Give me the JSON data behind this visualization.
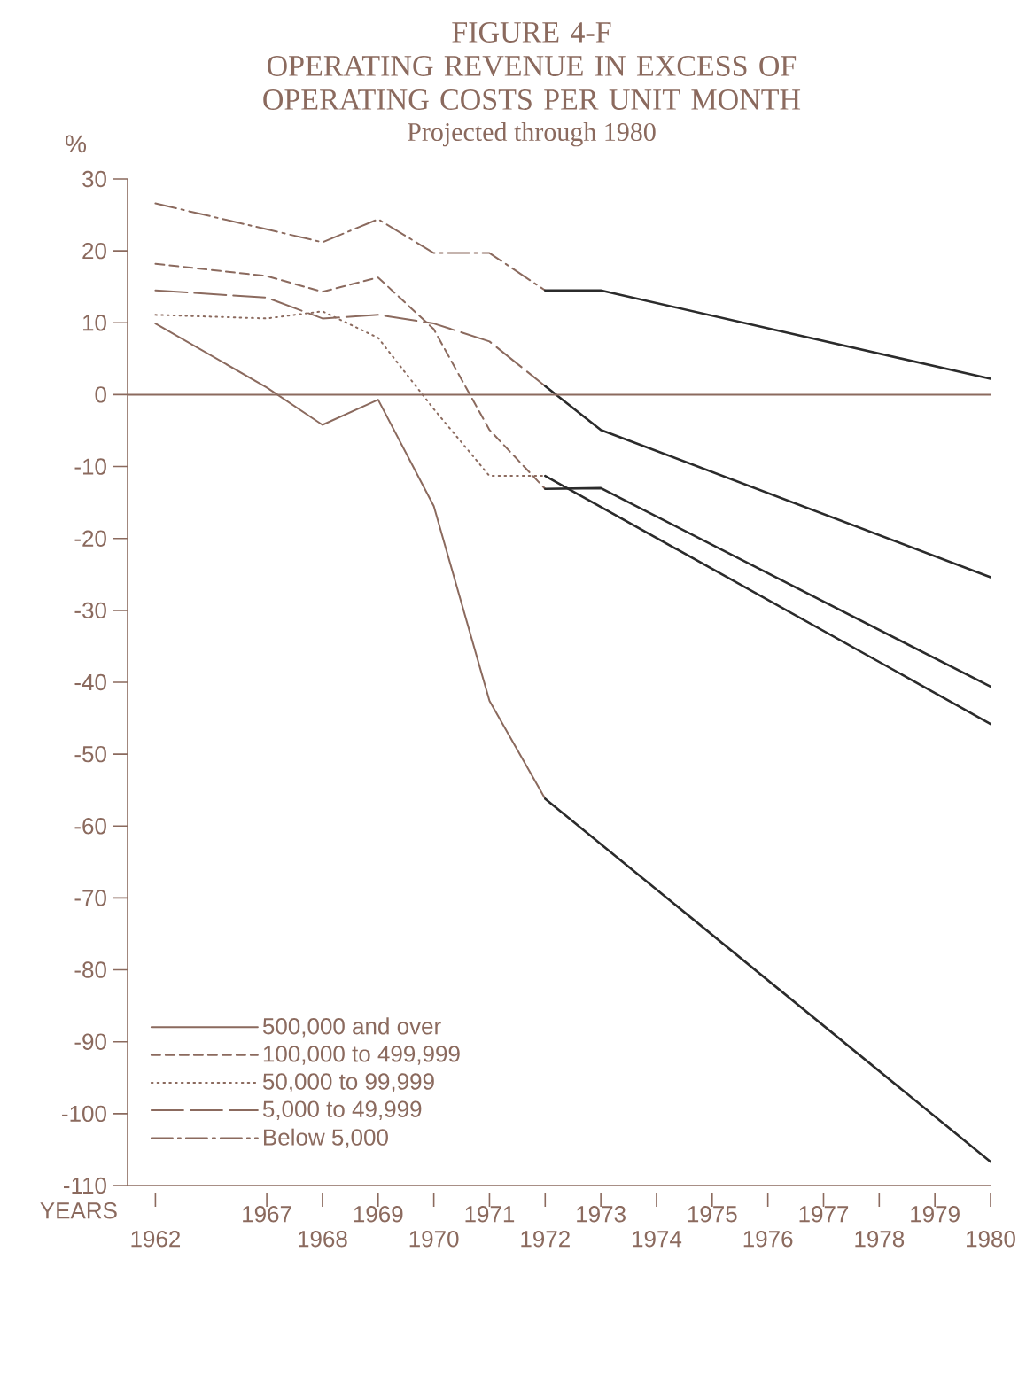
{
  "chart_data": {
    "type": "line",
    "title": "FIGURE 4-F",
    "subtitle": "OPERATING REVENUE IN EXCESS OF OPERATING COSTS PER UNIT MONTH",
    "annotations": [
      "Projected through 1980"
    ],
    "xlabel": "YEARS",
    "ylabel": "%",
    "categories": [
      "1962",
      null,
      "1967",
      "1968",
      "1969",
      "1970",
      "1971",
      "1972",
      "1973",
      "1974",
      "1975",
      "1976",
      "1977",
      "1978",
      "1979",
      "1980"
    ],
    "ylim": [
      -110,
      30
    ],
    "yticks": [
      30,
      20,
      10,
      0,
      -10,
      -20,
      -30,
      -40,
      -50,
      -60,
      -70,
      -80,
      -90,
      -100,
      -110
    ],
    "series": [
      {
        "name": "500,000 and over",
        "color": "#8b6a5e",
        "line_style": "solid",
        "values": [
          9.9,
          null,
          1.0,
          -4.2,
          -0.7,
          -15.5,
          -42.6,
          -56.2,
          null,
          null,
          null,
          null,
          null,
          null,
          null,
          null
        ]
      },
      {
        "name": "100,000 to 499,999",
        "color": "#8b6a5e",
        "line_style": "dashed",
        "values": [
          18.2,
          null,
          16.5,
          14.3,
          16.3,
          9.1,
          -4.9,
          -13.1,
          null,
          null,
          null,
          null,
          null,
          null,
          null,
          null
        ]
      },
      {
        "name": "50,000 to 99,999",
        "color": "#8b6a5e",
        "line_style": "dotted",
        "values": [
          11.1,
          null,
          10.6,
          11.6,
          7.9,
          -2.0,
          -11.3,
          -11.3,
          null,
          null,
          null,
          null,
          null,
          null,
          null,
          null
        ]
      },
      {
        "name": "5,000 to 49,999",
        "color": "#8b6a5e",
        "line_style": "longdashed",
        "values": [
          14.5,
          null,
          13.5,
          10.6,
          11.1,
          9.9,
          7.4,
          1.2,
          null,
          null,
          null,
          null,
          null,
          null,
          null,
          null
        ]
      },
      {
        "name": "Below 5,000",
        "color": "#8b6a5e",
        "line_style": "dashdot",
        "values": [
          26.6,
          null,
          null,
          21.2,
          24.4,
          19.7,
          19.7,
          14.5,
          null,
          null,
          null,
          null,
          null,
          null,
          null,
          null
        ]
      },
      {
        "color": "#2b2b2b",
        "line_style": "solid",
        "values": [
          null,
          null,
          null,
          null,
          null,
          null,
          null,
          -56.2,
          null,
          null,
          null,
          null,
          null,
          null,
          null,
          -106.7
        ]
      },
      {
        "color": "#2b2b2b",
        "line_style": "solid",
        "values": [
          null,
          null,
          null,
          null,
          null,
          null,
          null,
          -13.1,
          -13.0,
          null,
          null,
          null,
          null,
          null,
          null,
          -40.6
        ]
      },
      {
        "color": "#2b2b2b",
        "line_style": "solid",
        "values": [
          null,
          null,
          null,
          null,
          null,
          null,
          null,
          -11.3,
          null,
          null,
          null,
          null,
          null,
          null,
          null,
          -45.8
        ]
      },
      {
        "color": "#2b2b2b",
        "line_style": "solid",
        "values": [
          null,
          null,
          null,
          null,
          null,
          null,
          null,
          1.2,
          -4.9,
          null,
          null,
          null,
          null,
          null,
          null,
          -25.4
        ]
      },
      {
        "color": "#2b2b2b",
        "line_style": "solid",
        "values": [
          null,
          null,
          null,
          null,
          null,
          null,
          null,
          14.5,
          14.5,
          null,
          null,
          null,
          null,
          null,
          null,
          2.2
        ]
      }
    ],
    "ref_lines": [
      {
        "axis": "y",
        "value": 0,
        "color": "#8b6a5e"
      }
    ],
    "legend": "bottom left",
    "grid": false
  }
}
